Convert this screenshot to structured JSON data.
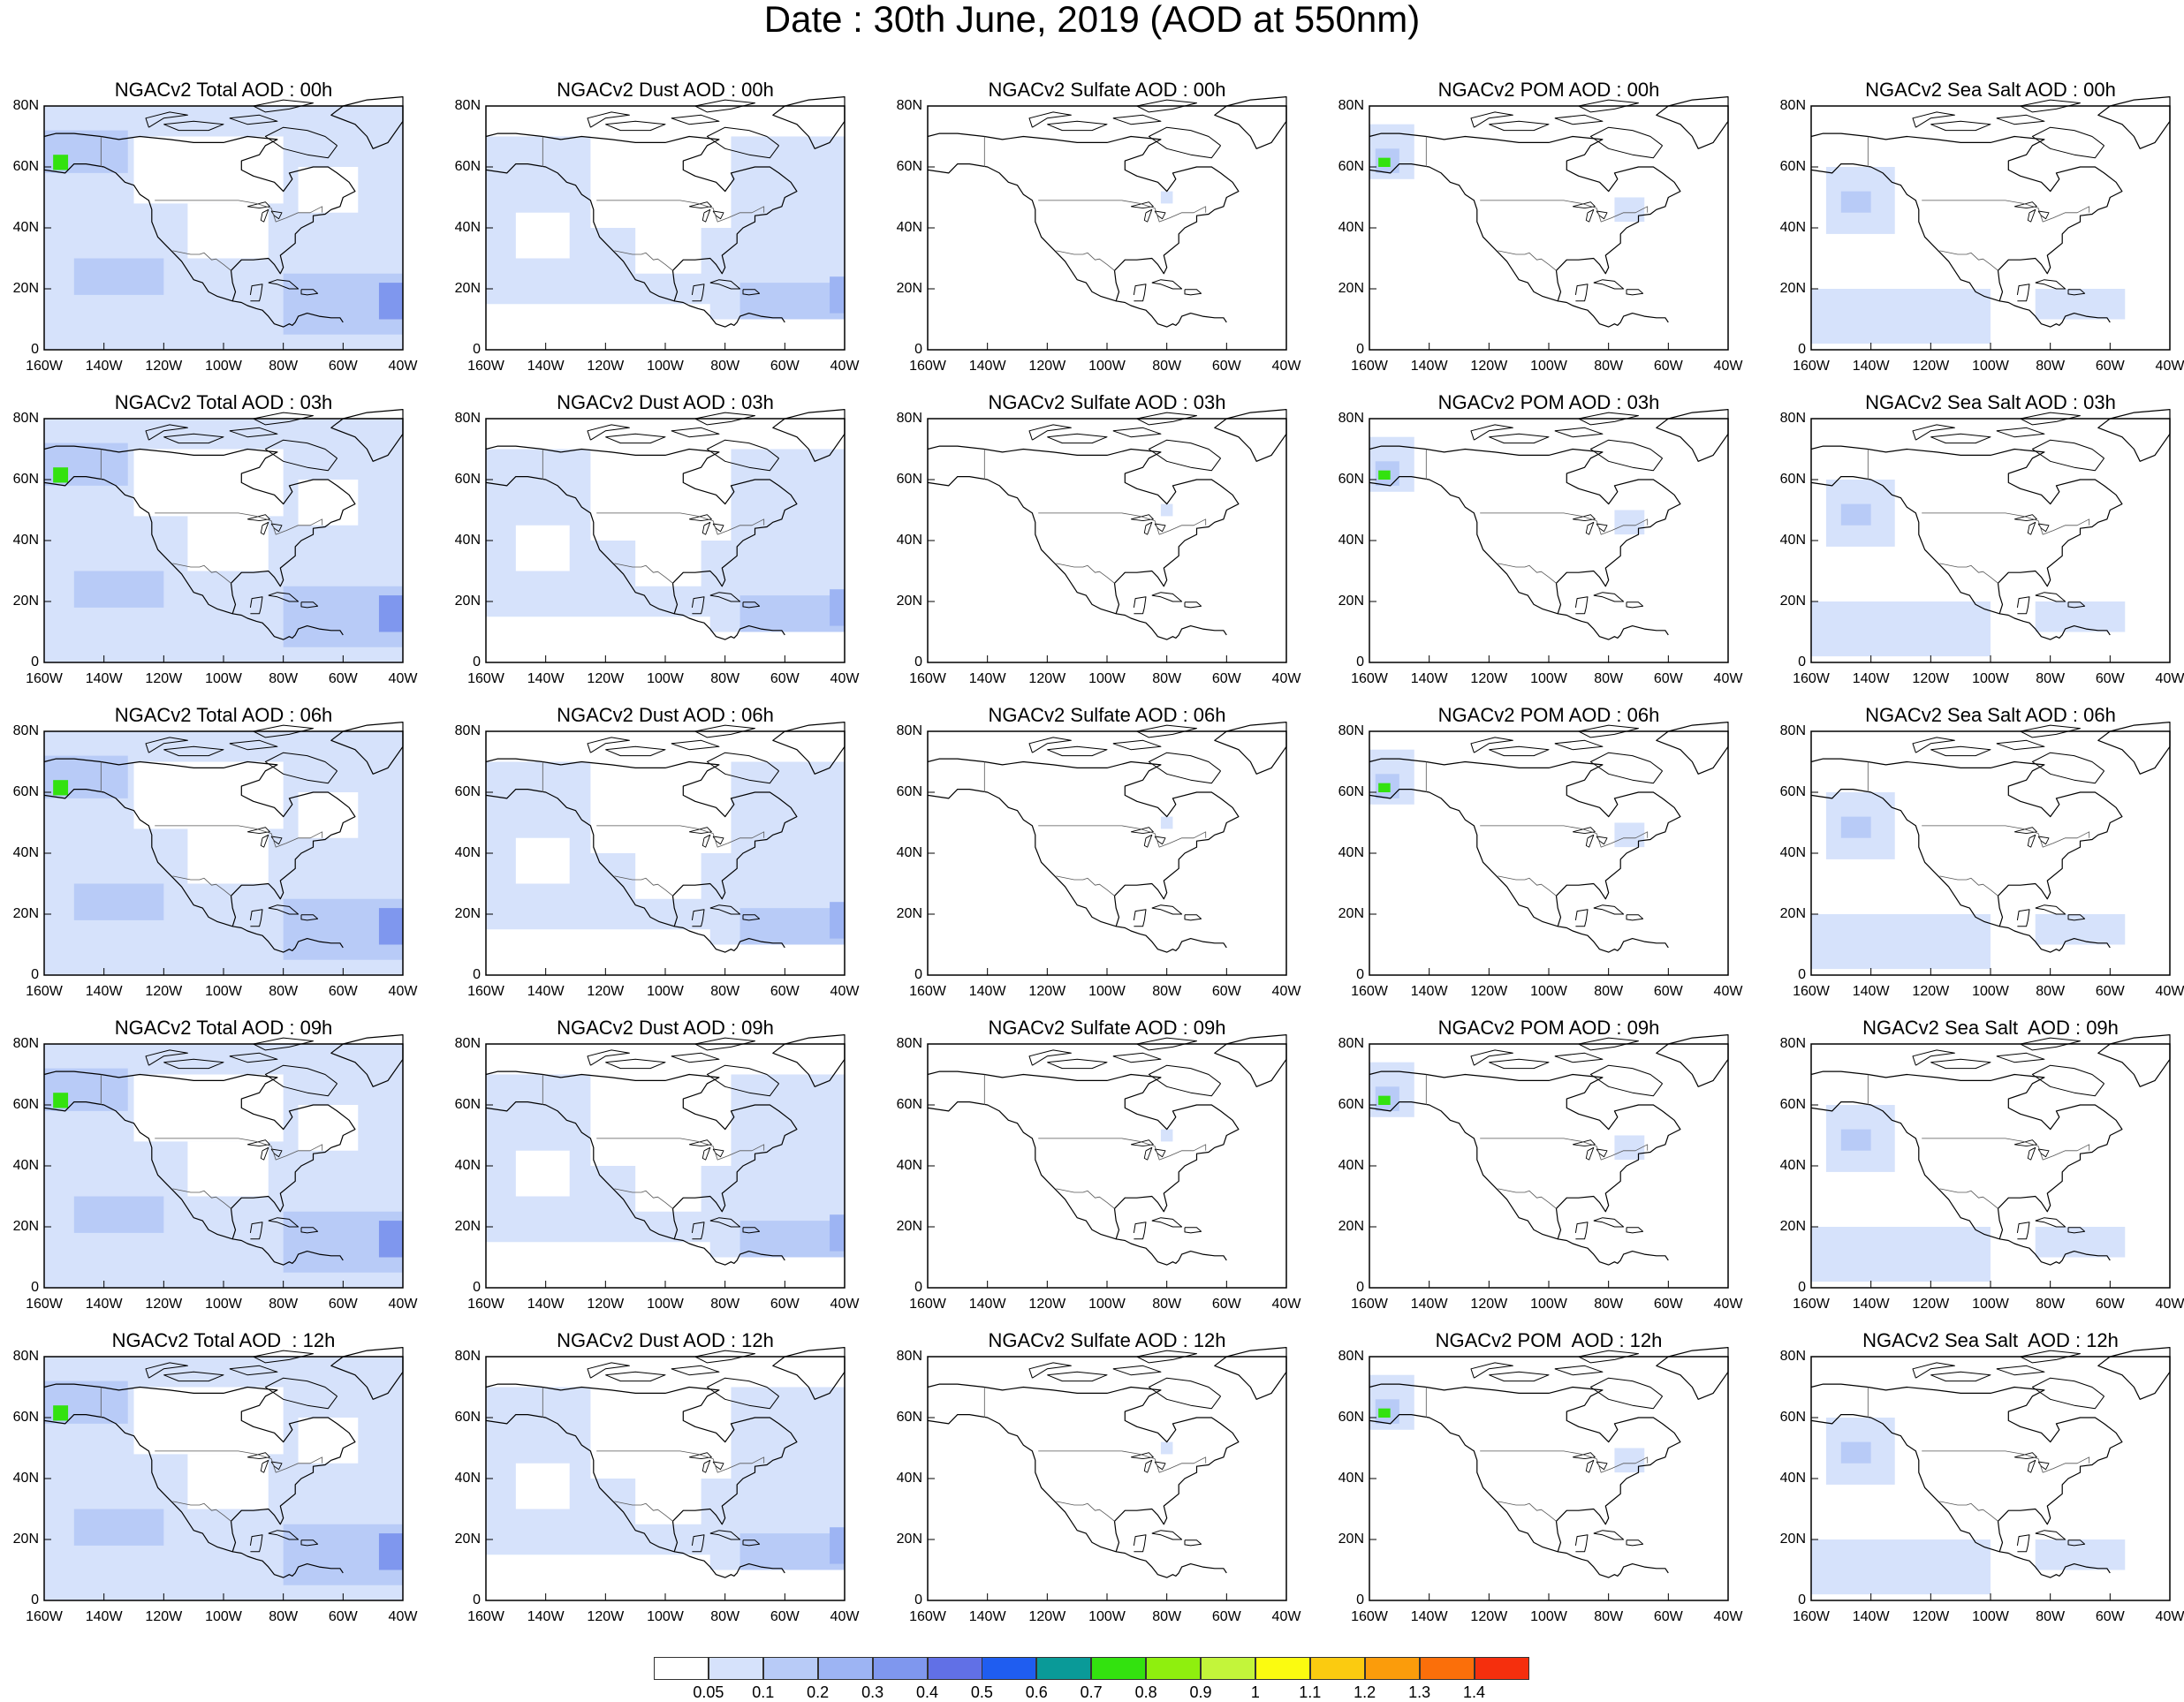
{
  "title": "Date : 30th June, 2019 (AOD at 550nm)",
  "colors": {
    "land_outline": "#000000",
    "panel_frame": "#000000"
  },
  "axes": {
    "lat_labels": [
      "80N",
      "60N",
      "40N",
      "20N",
      "0"
    ],
    "lon_labels": [
      "160W",
      "140W",
      "120W",
      "100W",
      "80W",
      "60W",
      "40W"
    ],
    "lon_range": [
      -160,
      -40
    ],
    "lat_range": [
      0,
      80
    ]
  },
  "panels": [
    [
      {
        "title": "NGACv2 Total AOD : 00h",
        "field": "total"
      },
      {
        "title": "NGACv2 Dust AOD : 00h",
        "field": "dust"
      },
      {
        "title": "NGACv2 Sulfate AOD : 00h",
        "field": "sulfate"
      },
      {
        "title": "NGACv2 POM AOD : 00h",
        "field": "pom"
      },
      {
        "title": "NGACv2 Sea Salt AOD : 00h",
        "field": "seasalt"
      }
    ],
    [
      {
        "title": "NGACv2 Total AOD : 03h",
        "field": "total"
      },
      {
        "title": "NGACv2 Dust AOD : 03h",
        "field": "dust"
      },
      {
        "title": "NGACv2 Sulfate AOD : 03h",
        "field": "sulfate"
      },
      {
        "title": "NGACv2 POM AOD : 03h",
        "field": "pom"
      },
      {
        "title": "NGACv2 Sea Salt AOD : 03h",
        "field": "seasalt"
      }
    ],
    [
      {
        "title": "NGACv2 Total AOD : 06h",
        "field": "total"
      },
      {
        "title": "NGACv2 Dust AOD : 06h",
        "field": "dust"
      },
      {
        "title": "NGACv2 Sulfate AOD : 06h",
        "field": "sulfate"
      },
      {
        "title": "NGACv2 POM AOD : 06h",
        "field": "pom"
      },
      {
        "title": "NGACv2 Sea Salt AOD : 06h",
        "field": "seasalt"
      }
    ],
    [
      {
        "title": "NGACv2 Total AOD : 09h",
        "field": "total"
      },
      {
        "title": "NGACv2 Dust AOD : 09h",
        "field": "dust"
      },
      {
        "title": "NGACv2 Sulfate AOD : 09h",
        "field": "sulfate"
      },
      {
        "title": "NGACv2 POM AOD : 09h",
        "field": "pom"
      },
      {
        "title": "NGACv2 Sea Salt  AOD : 09h",
        "field": "seasalt"
      }
    ],
    [
      {
        "title": "NGACv2 Total AOD  : 12h",
        "field": "total"
      },
      {
        "title": "NGACv2 Dust AOD : 12h",
        "field": "dust"
      },
      {
        "title": "NGACv2 Sulfate AOD : 12h",
        "field": "sulfate"
      },
      {
        "title": "NGACv2 POM  AOD : 12h",
        "field": "pom"
      },
      {
        "title": "NGACv2 Sea Salt  AOD : 12h",
        "field": "seasalt"
      }
    ]
  ],
  "colorbar": {
    "labels": [
      "0.05",
      "0.1",
      "0.2",
      "0.3",
      "0.4",
      "0.5",
      "0.6",
      "0.7",
      "0.8",
      "0.9",
      "1",
      "1.1",
      "1.2",
      "1.3",
      "1.4"
    ],
    "colors": [
      "#ffffff",
      "#d6e2fb",
      "#b8cbf7",
      "#9db4f3",
      "#7f97ee",
      "#6170e6",
      "#1f5df0",
      "#0a9a98",
      "#33e20f",
      "#8fef0e",
      "#c3f53a",
      "#fbfb10",
      "#fbcb10",
      "#fb9c0b",
      "#fb6f0a",
      "#f52f0d"
    ]
  },
  "fields": {
    "total": {
      "shades": [
        {
          "lon": [
            -160,
            -40
          ],
          "lat": [
            0,
            80
          ],
          "level": 1
        },
        {
          "lon": [
            -160,
            -132
          ],
          "lat": [
            58,
            72
          ],
          "level": 2
        },
        {
          "lon": [
            -80,
            -40
          ],
          "lat": [
            5,
            25
          ],
          "level": 2
        },
        {
          "lon": [
            -150,
            -120
          ],
          "lat": [
            18,
            30
          ],
          "level": 2
        },
        {
          "lon": [
            -48,
            -40
          ],
          "lat": [
            10,
            22
          ],
          "level": 4
        },
        {
          "lon": [
            -157,
            -152
          ],
          "lat": [
            59,
            64
          ],
          "level": 8
        }
      ],
      "clear": [
        {
          "lon": [
            -130,
            -80
          ],
          "lat": [
            48,
            70
          ]
        },
        {
          "lon": [
            -112,
            -85
          ],
          "lat": [
            30,
            48
          ]
        },
        {
          "lon": [
            -75,
            -55
          ],
          "lat": [
            45,
            60
          ]
        }
      ]
    },
    "dust": {
      "shades": [
        {
          "lon": [
            -160,
            -40
          ],
          "lat": [
            15,
            70
          ],
          "level": 1
        },
        {
          "lon": [
            -85,
            -40
          ],
          "lat": [
            10,
            30
          ],
          "level": 1
        },
        {
          "lon": [
            -75,
            -40
          ],
          "lat": [
            10,
            22
          ],
          "level": 2
        },
        {
          "lon": [
            -45,
            -40
          ],
          "lat": [
            12,
            24
          ],
          "level": 3
        }
      ],
      "clear": [
        {
          "lon": [
            -125,
            -78
          ],
          "lat": [
            40,
            80
          ]
        },
        {
          "lon": [
            -150,
            -132
          ],
          "lat": [
            30,
            45
          ]
        },
        {
          "lon": [
            -110,
            -88
          ],
          "lat": [
            25,
            40
          ]
        }
      ]
    },
    "sulfate": {
      "shades": [
        {
          "lon": [
            -82,
            -78
          ],
          "lat": [
            48,
            52
          ],
          "level": 1
        }
      ],
      "clear": []
    },
    "pom": {
      "shades": [
        {
          "lon": [
            -160,
            -145
          ],
          "lat": [
            56,
            74
          ],
          "level": 1
        },
        {
          "lon": [
            -158,
            -150
          ],
          "lat": [
            58,
            66
          ],
          "level": 2
        },
        {
          "lon": [
            -157,
            -153
          ],
          "lat": [
            60,
            63
          ],
          "level": 8
        },
        {
          "lon": [
            -78,
            -68
          ],
          "lat": [
            42,
            50
          ],
          "level": 1
        }
      ],
      "clear": []
    },
    "seasalt": {
      "shades": [
        {
          "lon": [
            -155,
            -132
          ],
          "lat": [
            38,
            60
          ],
          "level": 1
        },
        {
          "lon": [
            -160,
            -100
          ],
          "lat": [
            2,
            20
          ],
          "level": 1
        },
        {
          "lon": [
            -85,
            -55
          ],
          "lat": [
            10,
            20
          ],
          "level": 1
        },
        {
          "lon": [
            -150,
            -140
          ],
          "lat": [
            45,
            52
          ],
          "level": 2
        }
      ],
      "clear": []
    }
  }
}
